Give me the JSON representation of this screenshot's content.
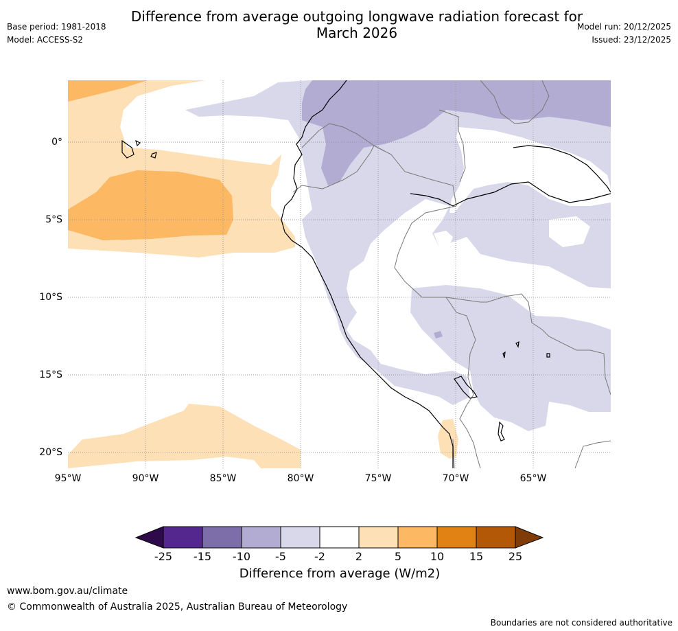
{
  "title": {
    "line1": "Difference from average outgoing longwave radiation forecast for",
    "line2": "March 2026"
  },
  "meta": {
    "base_period": "Base period: 1981-2018",
    "model": "Model: ACCESS-S2",
    "model_run": "Model run: 20/12/2025",
    "issued": "Issued: 23/12/2025"
  },
  "map": {
    "lon_ticks": [
      "95°W",
      "90°W",
      "85°W",
      "80°W",
      "75°W",
      "70°W",
      "65°W"
    ],
    "lat_ticks": [
      "0°",
      "5°S",
      "10°S",
      "15°S",
      "20°S"
    ]
  },
  "colorbar": {
    "label": "Difference from average (W/m2)",
    "ticks": [
      "-25",
      "-15",
      "-10",
      "-5",
      "-2",
      "2",
      "5",
      "10",
      "15",
      "25"
    ],
    "colors": {
      "lt_m25": "#2f0a4b",
      "m25_m15": "#54278f",
      "m15_m10": "#7d6ea9",
      "m10_m5": "#b2abd2",
      "m5_m2": "#d8d8ea",
      "m2_2": "#ffffff",
      "p2_5": "#fee0b6",
      "p5_10": "#fdb863",
      "p10_15": "#e08214",
      "p15_25": "#b35806",
      "gt_25": "#7f3b08"
    }
  },
  "footer": {
    "url": "www.bom.gov.au/climate",
    "copyright": "© Commonwealth of Australia 2025, Australian Bureau of Meteorology",
    "disclaimer": "Boundaries are not considered authoritative"
  }
}
